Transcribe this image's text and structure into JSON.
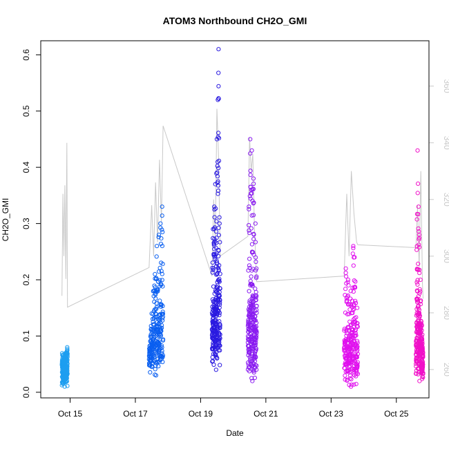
{
  "chart_data": {
    "type": "scatter",
    "title": "ATOM3 Northbound CH2O_GMI",
    "xlabel": "Date",
    "ylabel": "CH2O_GMI",
    "ylabel_right": "",
    "x_ticks": [
      "Oct 15",
      "Oct 17",
      "Oct 19",
      "Oct 21",
      "Oct 23",
      "Oct 25"
    ],
    "x_tick_days": [
      15,
      17,
      19,
      21,
      23,
      25
    ],
    "xlim_days": [
      14.1,
      26.0
    ],
    "ylim": [
      -0.01,
      0.625
    ],
    "y_ticks": [
      0.0,
      0.1,
      0.2,
      0.3,
      0.4,
      0.5,
      0.6
    ],
    "y_tick_labels": [
      "0.0",
      "0.1",
      "0.2",
      "0.3",
      "0.4",
      "0.5",
      "0.6"
    ],
    "y2lim": [
      250,
      376
    ],
    "y2_ticks": [
      260,
      280,
      300,
      320,
      340,
      360
    ],
    "y2_tick_labels": [
      "260",
      "280",
      "300",
      "320",
      "340",
      "360"
    ],
    "grid": false,
    "legend": "none",
    "colors": {
      "flight1": "#1e9ef0",
      "flight2": "#0a5ff0",
      "flight3": "#2a1ae0",
      "flight4": "#8a1cf0",
      "flight5": "#e010ee",
      "flight6": "#f010c8",
      "right_axis_line": "#c8c8c8"
    },
    "series": [
      {
        "color_key": "flight1",
        "day_range": [
          14.75,
          14.92
        ],
        "min": 0.01,
        "max": 0.08,
        "peaks": [
          [
            14.78,
            0.035
          ],
          [
            14.83,
            0.04
          ],
          [
            14.88,
            0.06
          ],
          [
            14.91,
            0.08
          ]
        ]
      },
      {
        "color_key": "flight2",
        "day_range": [
          17.42,
          17.85
        ],
        "min": 0.03,
        "max": 0.33,
        "peaks": [
          [
            17.5,
            0.14
          ],
          [
            17.55,
            0.18
          ],
          [
            17.6,
            0.21
          ],
          [
            17.66,
            0.26
          ],
          [
            17.72,
            0.28
          ],
          [
            17.77,
            0.3
          ],
          [
            17.82,
            0.33
          ]
        ]
      },
      {
        "color_key": "flight3",
        "day_range": [
          19.35,
          19.6
        ],
        "min": 0.04,
        "max": 0.61,
        "peaks": [
          [
            19.38,
            0.29
          ],
          [
            19.42,
            0.33
          ],
          [
            19.45,
            0.37
          ],
          [
            19.5,
            0.45
          ],
          [
            19.53,
            0.52
          ],
          [
            19.55,
            0.61
          ],
          [
            19.58,
            0.3
          ]
        ]
      },
      {
        "color_key": "flight4",
        "day_range": [
          20.45,
          20.72
        ],
        "min": 0.02,
        "max": 0.45,
        "peaks": [
          [
            20.48,
            0.33
          ],
          [
            20.52,
            0.45
          ],
          [
            20.57,
            0.43
          ],
          [
            20.62,
            0.38
          ],
          [
            20.68,
            0.3
          ],
          [
            20.71,
            0.22
          ]
        ]
      },
      {
        "color_key": "flight5",
        "day_range": [
          23.4,
          23.82
        ],
        "min": 0.01,
        "max": 0.26,
        "peaks": [
          [
            23.45,
            0.22
          ],
          [
            23.52,
            0.2
          ],
          [
            23.6,
            0.18
          ],
          [
            23.68,
            0.26
          ],
          [
            23.72,
            0.24
          ],
          [
            23.8,
            0.15
          ]
        ]
      },
      {
        "color_key": "flight6",
        "day_range": [
          25.6,
          25.82
        ],
        "min": 0.02,
        "max": 0.43,
        "peaks": [
          [
            25.65,
            0.43
          ],
          [
            25.68,
            0.33
          ],
          [
            25.7,
            0.28
          ],
          [
            25.74,
            0.2
          ],
          [
            25.78,
            0.12
          ],
          [
            25.8,
            0.08
          ]
        ]
      }
    ],
    "right_axis_series": {
      "points": [
        [
          14.75,
          286
        ],
        [
          14.78,
          322
        ],
        [
          14.81,
          300
        ],
        [
          14.84,
          325
        ],
        [
          14.87,
          292
        ],
        [
          14.9,
          340
        ],
        [
          14.92,
          282
        ],
        [
          17.42,
          296
        ],
        [
          17.5,
          318
        ],
        [
          17.56,
          300
        ],
        [
          17.62,
          326
        ],
        [
          17.68,
          305
        ],
        [
          17.74,
          334
        ],
        [
          17.8,
          312
        ],
        [
          17.85,
          346
        ],
        [
          19.35,
          293
        ],
        [
          19.4,
          320
        ],
        [
          19.45,
          305
        ],
        [
          19.5,
          352
        ],
        [
          19.55,
          335
        ],
        [
          19.6,
          300
        ],
        [
          20.45,
          307
        ],
        [
          20.5,
          342
        ],
        [
          20.55,
          330
        ],
        [
          20.6,
          336
        ],
        [
          20.65,
          310
        ],
        [
          20.72,
          291
        ],
        [
          23.4,
          293
        ],
        [
          23.48,
          322
        ],
        [
          23.55,
          300
        ],
        [
          23.62,
          330
        ],
        [
          23.7,
          315
        ],
        [
          23.78,
          305
        ],
        [
          23.82,
          304
        ],
        [
          25.6,
          303
        ],
        [
          25.65,
          318
        ],
        [
          25.7,
          296
        ],
        [
          25.75,
          330
        ],
        [
          25.8,
          290
        ],
        [
          25.82,
          285
        ]
      ]
    }
  }
}
